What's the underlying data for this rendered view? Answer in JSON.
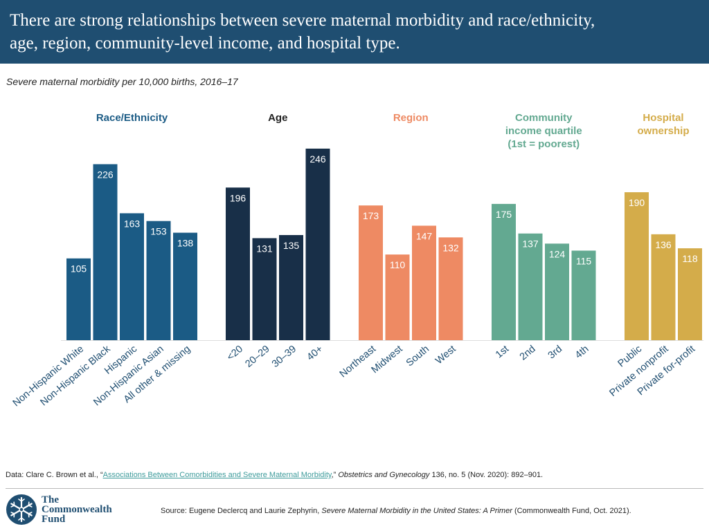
{
  "header": {
    "title_line1": "There are strong relationships between severe maternal morbidity and race/ethnicity,",
    "title_line2": "age, region, community-level income, and hospital type."
  },
  "subtitle": "Severe maternal morbidity per 10,000 births, 2016–17",
  "chart_data": {
    "type": "bar",
    "title": "Severe maternal morbidity per 10,000 births, 2016–17",
    "ylim": [
      0,
      260
    ],
    "grid": false,
    "groups": [
      {
        "name": "Race/Ethnicity",
        "title_lines": [
          "Race/Ethnicity"
        ],
        "color": "#1b5b85",
        "label_color": "#ffffff",
        "categories": [
          "Non-Hispanic White",
          "Non-Hispanic Black",
          "Hispanic",
          "Non-Hispanic Asian",
          "All other & missing"
        ],
        "values": [
          105,
          226,
          163,
          153,
          138
        ]
      },
      {
        "name": "Age",
        "title_lines": [
          "Age"
        ],
        "color": "#182f48",
        "label_color": "#ffffff",
        "categories": [
          "<20",
          "20–29",
          "30–39",
          "40+"
        ],
        "values": [
          196,
          131,
          135,
          246
        ]
      },
      {
        "name": "Region",
        "title_lines": [
          "Region"
        ],
        "color": "#ee8a63",
        "label_color": "#ffffff",
        "categories": [
          "Northeast",
          "Midwest",
          "South",
          "West"
        ],
        "values": [
          173,
          110,
          147,
          132
        ]
      },
      {
        "name": "Community income quartile (1st = poorest)",
        "title_lines": [
          "Community",
          "income quartile",
          "(1st = poorest)"
        ],
        "color": "#63a991",
        "label_color": "#ffffff",
        "categories": [
          "1st",
          "2nd",
          "3rd",
          "4th"
        ],
        "values": [
          175,
          137,
          124,
          115
        ]
      },
      {
        "name": "Hospital ownership",
        "title_lines": [
          "Hospital",
          "ownership"
        ],
        "color": "#d4ac4a",
        "label_color": "#ffffff",
        "categories": [
          "Public",
          "Private nonprofit",
          "Private for-profit"
        ],
        "values": [
          190,
          136,
          118
        ]
      }
    ]
  },
  "group_title_colors": [
    "#1b5b85",
    "#222222",
    "#ee8a63",
    "#63a991",
    "#d4ac4a"
  ],
  "note": {
    "prefix": "Data: Clare C. Brown et al., “",
    "link": "Associations Between Comorbidities and Severe Maternal Morbidity",
    "mid": ",” ",
    "journal": "Obstetrics and Gynecology",
    "suffix": " 136, no. 5 (Nov. 2020): 892–901."
  },
  "logo": {
    "line1": "The",
    "line2": "Commonwealth",
    "line3": "Fund",
    "icon": "snowflake-icon"
  },
  "source": {
    "prefix": "Source: Eugene Declercq and Laurie Zephyrin, ",
    "title": "Severe Maternal Morbidity in the United States: A Primer",
    "suffix": " (Commonwealth Fund, Oct. 2021)."
  }
}
